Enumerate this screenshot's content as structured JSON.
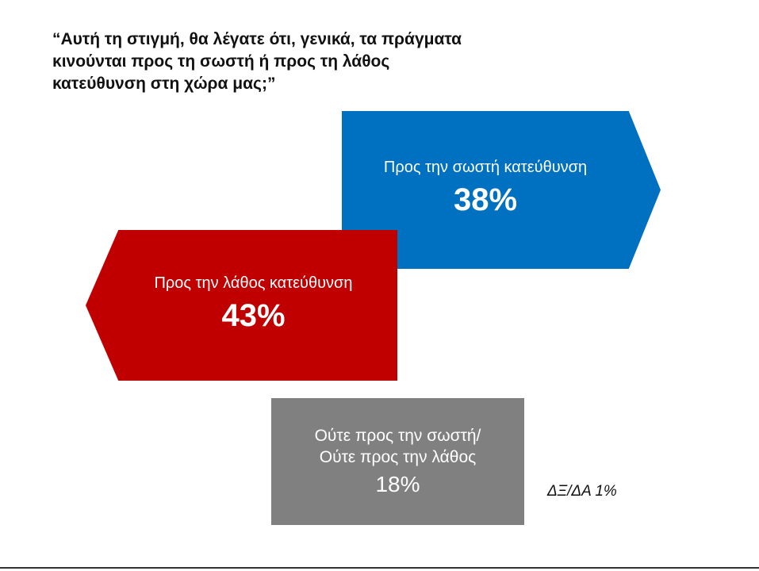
{
  "question": "“Αυτή τη στιγμή, θα λέγατε ότι, γενικά, τα πράγματα κινούνται προς τη σωστή ή προς τη λάθος κατεύθυνση στη χώρα μας;”",
  "chart_data": {
    "type": "infographic",
    "title": "“Αυτή τη στιγμή, θα λέγατε ότι, γενικά, τα πράγματα κινούνται προς τη σωστή ή προς τη λάθος κατεύθυνση στη χώρα μας;”",
    "unit": "%",
    "items": [
      {
        "label": "Προς την σωστή κατεύθυνση",
        "value": 38,
        "display": "38%",
        "color": "#0070C0"
      },
      {
        "label": "Προς την λάθος κατεύθυνση",
        "value": 43,
        "display": "43%",
        "color": "#C00000"
      },
      {
        "label_line1": "Ούτε προς την σωστή/",
        "label_line2": "Ούτε προς την λάθος",
        "value": 18,
        "display": "18%",
        "color": "#808080"
      }
    ],
    "footnote": "ΔΞ/ΔΑ 1%"
  }
}
